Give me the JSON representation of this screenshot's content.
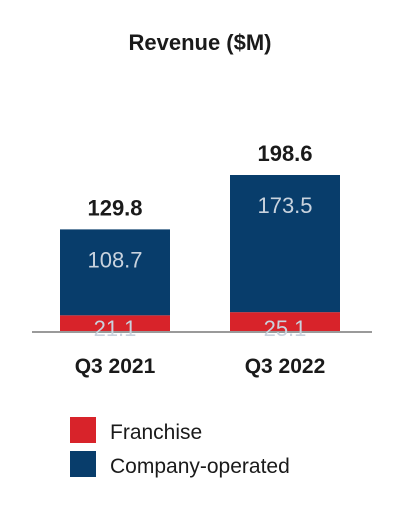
{
  "chart_data": {
    "type": "bar",
    "stacked": true,
    "title": "Revenue ($M)",
    "categories": [
      "Q3 2021",
      "Q3 2022"
    ],
    "series": [
      {
        "name": "Franchise",
        "values": [
          21.1,
          25.1
        ],
        "color": "#d8232a"
      },
      {
        "name": "Company-operated",
        "values": [
          108.7,
          173.5
        ],
        "color": "#083d6b"
      }
    ],
    "totals": [
      129.8,
      198.6
    ],
    "segment_labels": [
      [
        "21.1",
        "108.7"
      ],
      [
        "25.1",
        "173.5"
      ]
    ],
    "total_labels": [
      "129.8",
      "198.6"
    ],
    "xlabel": "",
    "ylabel": "",
    "ylim": [
      0,
      198.6
    ],
    "grid": false,
    "legend_position": "bottom",
    "baseline_color": "#9a9a9a"
  }
}
